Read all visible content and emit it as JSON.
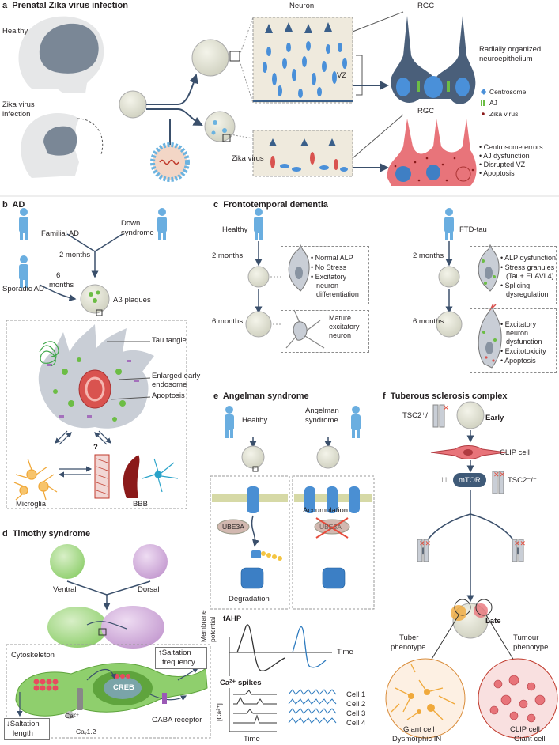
{
  "colors": {
    "blue": "#2e7bbf",
    "darkblue": "#3a5f8a",
    "red": "#d9534f",
    "green": "#6cbd45",
    "orange": "#f5a623",
    "purple": "#c39bd3",
    "grey": "#b8bfc7"
  },
  "a": {
    "title": "a",
    "title_text": "Prenatal Zika virus infection",
    "healthy": "Healthy",
    "zika_infection_1": "Zika virus",
    "zika_infection_2": "infection",
    "neuron": "Neuron",
    "rgc_top": "RGC",
    "rgc_bottom": "RGC",
    "vz": "VZ",
    "zika_virus": "Zika virus",
    "radial_1": "Radially organized",
    "radial_2": "neuroepithelium",
    "legend": [
      "Centrosome",
      "AJ",
      "Zika virus"
    ],
    "outcomes": [
      "Centrosome errors",
      "AJ dysfunction",
      "Disrupted VZ",
      "Apoptosis"
    ]
  },
  "b": {
    "title": "b",
    "title_text": "AD",
    "familial": "Familial AD",
    "down_1": "Down",
    "down_2": "syndrome",
    "two_months": "2 months",
    "sporadic": "Sporadic AD",
    "six_1": "6",
    "six_2": "months",
    "plaques": "Aβ plaques",
    "tau": "Tau tangle",
    "endosome_1": "Enlarged early",
    "endosome_2": "endosome",
    "apoptosis": "Apoptosis",
    "question": "?",
    "microglia": "Microglia",
    "bbb": "BBB"
  },
  "c": {
    "title": "c",
    "title_text": "Frontotemporal dementia",
    "healthy": "Healthy",
    "ftd": "FTD-tau",
    "two_months_l": "2 months",
    "six_months_l": "6 months",
    "two_months_r": "2 months",
    "six_months_r": "6 months",
    "healthy_2m": [
      "Normal ALP",
      "No Stress",
      "Excitatory",
      "neuron",
      "differentiation"
    ],
    "healthy_6m": [
      "Mature",
      "excitatory",
      "neuron"
    ],
    "ftd_2m": [
      "ALP dysfunction",
      "Stress granules",
      "(Tau+ ELAVL4)",
      "Splicing",
      "dysregulation"
    ],
    "ftd_6m": [
      "Excitatory",
      "neuron",
      "dysfunction",
      "Excitotoxicity",
      "Apoptosis"
    ]
  },
  "d": {
    "title": "d",
    "title_text": "Timothy syndrome",
    "ventral": "Ventral",
    "dorsal": "Dorsal",
    "cytoskeleton": "Cytoskeleton",
    "saltation_up_1": "↑Saltation",
    "saltation_up_2": "frequency",
    "creb": "CREB",
    "gaba": "GABA receptor",
    "saltation_down_1": "↓Saltation",
    "saltation_down_2": "length",
    "ca": "Ca²⁺",
    "cav": "Caᵥ1.2"
  },
  "e": {
    "title": "e",
    "title_text": "Angelman syndrome",
    "healthy": "Healthy",
    "angelman_1": "Angelman",
    "angelman_2": "syndrome",
    "ube3a_l": "UBE3A",
    "ube3a_r": "UBE3A",
    "accumulation": "Accumulation",
    "degradation": "Degradation",
    "fahp": "fAHP",
    "membrane_1": "Membrane",
    "membrane_2": "potential",
    "time_1": "Time",
    "ca_spikes": "Ca²⁺ spikes",
    "ca_axis": "[Ca²⁺]",
    "cells": [
      "Cell 1",
      "Cell 2",
      "Cell 3",
      "Cell 4"
    ],
    "time_2": "Time"
  },
  "f": {
    "title": "f",
    "title_text": "Tuberous sclerosis complex",
    "tsc2_top": "TSC2⁺/⁻",
    "early": "Early",
    "clip": "CLIP cell",
    "mtor": "mTOR",
    "mtor_arrows": "↑↑",
    "tsc2_mid": "TSC2⁻/⁻",
    "late": "Late",
    "tuber_1": "Tuber",
    "tuber_2": "phenotype",
    "tumour_1": "Tumour",
    "tumour_2": "phenotype",
    "giant_l": "Giant cell",
    "dysmorphic": "Dysmorphic IN",
    "clip_r": "CLIP cell",
    "giant_r": "Giant cell"
  }
}
